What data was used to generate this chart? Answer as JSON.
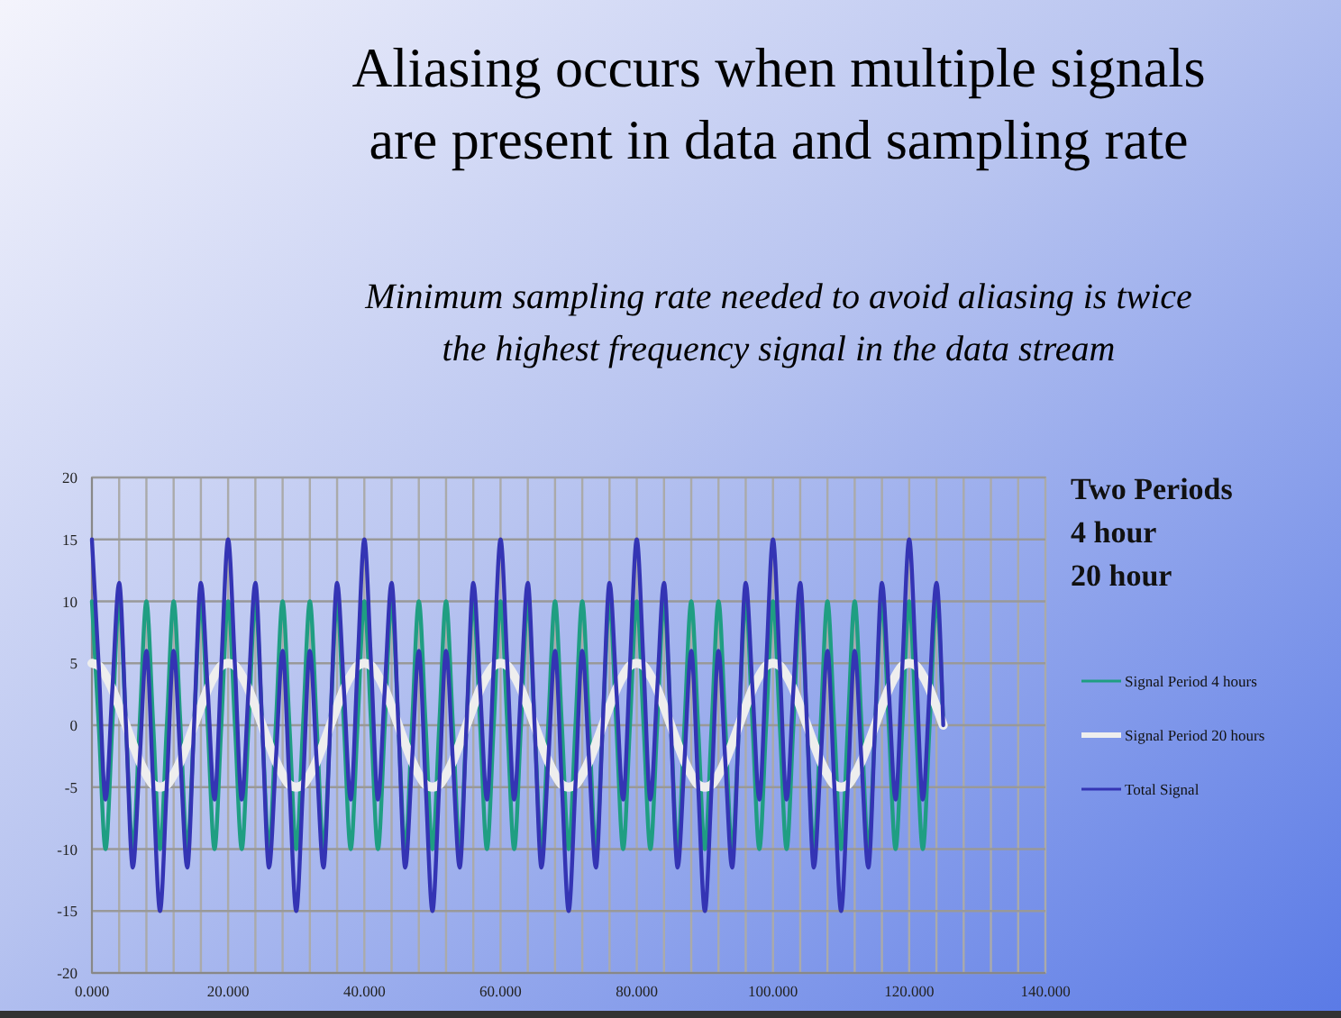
{
  "chart_data": {
    "type": "line",
    "title": "Aliasing occurs when multiple signals\nare present in data and sampling rate",
    "subtitle": "Minimum sampling rate needed to avoid aliasing is twice\nthe highest frequency signal in the data stream",
    "annotations": [
      "Two  Periods",
      "4 hour",
      "20 hour"
    ],
    "x": [
      0,
      1,
      2,
      3,
      4,
      5,
      6,
      7,
      8,
      9,
      10,
      11,
      12,
      13,
      14,
      15,
      16,
      17,
      18,
      19,
      20,
      21,
      22,
      23,
      24,
      25,
      26,
      27,
      28,
      29,
      30,
      31,
      32,
      33,
      34,
      35,
      36,
      37,
      38,
      39,
      40,
      41,
      42,
      43,
      44,
      45,
      46,
      47,
      48,
      49,
      50,
      51,
      52,
      53,
      54,
      55,
      56,
      57,
      58,
      59,
      60,
      61,
      62,
      63,
      64,
      65,
      66,
      67,
      68,
      69,
      70,
      71,
      72,
      73,
      74,
      75,
      76,
      77,
      78,
      79,
      80,
      81,
      82,
      83,
      84,
      85,
      86,
      87,
      88,
      89,
      90,
      91,
      92,
      93,
      94,
      95,
      96,
      97,
      98,
      99,
      100,
      101,
      102,
      103,
      104,
      105,
      106,
      107,
      108,
      109,
      110,
      111,
      112,
      113,
      114,
      115,
      116,
      117,
      118,
      119,
      120,
      121,
      122,
      123,
      124,
      125
    ],
    "series": [
      {
        "name": "Signal Period 4 hours",
        "color": "#1f9e82",
        "values": [
          10,
          0,
          -10,
          0,
          10,
          0,
          -10,
          0,
          10,
          0,
          -10,
          0,
          10,
          0,
          -10,
          0,
          10,
          0,
          -10,
          0,
          10,
          0,
          -10,
          0,
          10,
          0,
          -10,
          0,
          10,
          0,
          -10,
          0,
          10,
          0,
          -10,
          0,
          10,
          0,
          -10,
          0,
          10,
          0,
          -10,
          0,
          10,
          0,
          -10,
          0,
          10,
          0,
          -10,
          0,
          10,
          0,
          -10,
          0,
          10,
          0,
          -10,
          0,
          10,
          0,
          -10,
          0,
          10,
          0,
          -10,
          0,
          10,
          0,
          -10,
          0,
          10,
          0,
          -10,
          0,
          10,
          0,
          -10,
          0,
          10,
          0,
          -10,
          0,
          10,
          0,
          -10,
          0,
          10,
          0,
          -10,
          0,
          10,
          0,
          -10,
          0,
          10,
          0,
          -10,
          0,
          10,
          0,
          -10,
          0,
          10,
          0,
          -10,
          0,
          10,
          0,
          -10,
          0,
          10,
          0,
          -10,
          0,
          10,
          0,
          -10,
          0,
          10,
          0,
          -10,
          0,
          10,
          0
        ]
      },
      {
        "name": "Signal Period 20 hours",
        "color": "#eeeeee",
        "values": [
          5,
          4.8,
          4,
          2.9,
          1.5,
          0,
          -1.5,
          -2.9,
          -4,
          -4.8,
          -5,
          -4.8,
          -4,
          -2.9,
          -1.5,
          0,
          1.5,
          2.9,
          4,
          4.8,
          5,
          4.8,
          4,
          2.9,
          1.5,
          0,
          -1.5,
          -2.9,
          -4,
          -4.8,
          -5,
          -4.8,
          -4,
          -2.9,
          -1.5,
          0,
          1.5,
          2.9,
          4,
          4.8,
          5,
          4.8,
          4,
          2.9,
          1.5,
          0,
          -1.5,
          -2.9,
          -4,
          -4.8,
          -5,
          -4.8,
          -4,
          -2.9,
          -1.5,
          0,
          1.5,
          2.9,
          4,
          4.8,
          5,
          4.8,
          4,
          2.9,
          1.5,
          0,
          -1.5,
          -2.9,
          -4,
          -4.8,
          -5,
          -4.8,
          -4,
          -2.9,
          -1.5,
          0,
          1.5,
          2.9,
          4,
          4.8,
          5,
          4.8,
          4,
          2.9,
          1.5,
          0,
          -1.5,
          -2.9,
          -4,
          -4.8,
          -5,
          -4.8,
          -4,
          -2.9,
          -1.5,
          0,
          1.5,
          2.9,
          4,
          4.8,
          5,
          4.8,
          4,
          2.9,
          1.5,
          0,
          -1.5,
          -2.9,
          -4,
          -4.8,
          -5,
          -4.8,
          -4,
          -2.9,
          -1.5,
          0,
          1.5,
          2.9,
          4,
          4.8,
          5,
          4.8,
          4,
          2.9,
          1.5,
          0
        ]
      },
      {
        "name": "Total Signal",
        "color": "#3434b4",
        "values": [
          15,
          4.8,
          -6,
          2.9,
          11.5,
          0,
          -11.5,
          -2.9,
          6,
          -4.8,
          -15,
          -4.8,
          6,
          -2.9,
          -11.5,
          0,
          11.5,
          2.9,
          -6,
          4.8,
          15,
          4.8,
          -6,
          2.9,
          11.5,
          0,
          -11.5,
          -2.9,
          6,
          -4.8,
          -15,
          -4.8,
          6,
          -2.9,
          -11.5,
          0,
          11.5,
          2.9,
          -6,
          4.8,
          15,
          4.8,
          -6,
          2.9,
          11.5,
          0,
          -11.5,
          -2.9,
          6,
          -4.8,
          -15,
          -4.8,
          6,
          -2.9,
          -11.5,
          0,
          11.5,
          2.9,
          -6,
          4.8,
          15,
          4.8,
          -6,
          2.9,
          11.5,
          0,
          -11.5,
          -2.9,
          6,
          -4.8,
          -15,
          -4.8,
          6,
          -2.9,
          -11.5,
          0,
          11.5,
          2.9,
          -6,
          4.8,
          15,
          4.8,
          -6,
          2.9,
          11.5,
          0,
          -11.5,
          -2.9,
          6,
          -4.8,
          -15,
          -4.8,
          6,
          -2.9,
          -11.5,
          0,
          11.5,
          2.9,
          -6,
          4.8,
          15,
          4.8,
          -6,
          2.9,
          11.5,
          0,
          -11.5,
          -2.9,
          6,
          -4.8,
          -15,
          -4.8,
          6,
          -2.9,
          -11.5,
          0,
          11.5,
          2.9,
          -6,
          4.8,
          15,
          4.8,
          -6,
          2.9,
          11.5,
          0
        ]
      }
    ],
    "xlim": [
      0,
      140
    ],
    "xticks": [
      {
        "value": 0,
        "label": "0.000"
      },
      {
        "value": 4,
        "label": null
      },
      {
        "value": 8,
        "label": null
      },
      {
        "value": 12,
        "label": null
      },
      {
        "value": 16,
        "label": null
      },
      {
        "value": 20,
        "label": "20.000"
      },
      {
        "value": 24,
        "label": null
      },
      {
        "value": 28,
        "label": null
      },
      {
        "value": 32,
        "label": null
      },
      {
        "value": 36,
        "label": null
      },
      {
        "value": 40,
        "label": "40.000"
      },
      {
        "value": 44,
        "label": null
      },
      {
        "value": 48,
        "label": null
      },
      {
        "value": 52,
        "label": null
      },
      {
        "value": 56,
        "label": null
      },
      {
        "value": 60,
        "label": "60.000"
      },
      {
        "value": 64,
        "label": null
      },
      {
        "value": 68,
        "label": null
      },
      {
        "value": 72,
        "label": null
      },
      {
        "value": 76,
        "label": null
      },
      {
        "value": 80,
        "label": "80.000"
      },
      {
        "value": 84,
        "label": null
      },
      {
        "value": 88,
        "label": null
      },
      {
        "value": 92,
        "label": null
      },
      {
        "value": 96,
        "label": null
      },
      {
        "value": 100,
        "label": "100.000"
      },
      {
        "value": 104,
        "label": null
      },
      {
        "value": 108,
        "label": null
      },
      {
        "value": 112,
        "label": null
      },
      {
        "value": 116,
        "label": null
      },
      {
        "value": 120,
        "label": "120.000"
      },
      {
        "value": 124,
        "label": null
      },
      {
        "value": 128,
        "label": null
      },
      {
        "value": 132,
        "label": null
      },
      {
        "value": 136,
        "label": null
      },
      {
        "value": 140,
        "label": "140.000"
      }
    ],
    "ylim": [
      -20,
      20
    ],
    "yticks": [
      -20,
      -15,
      -10,
      -5,
      0,
      5,
      10,
      15,
      20
    ],
    "grid": true,
    "legend": "right"
  }
}
